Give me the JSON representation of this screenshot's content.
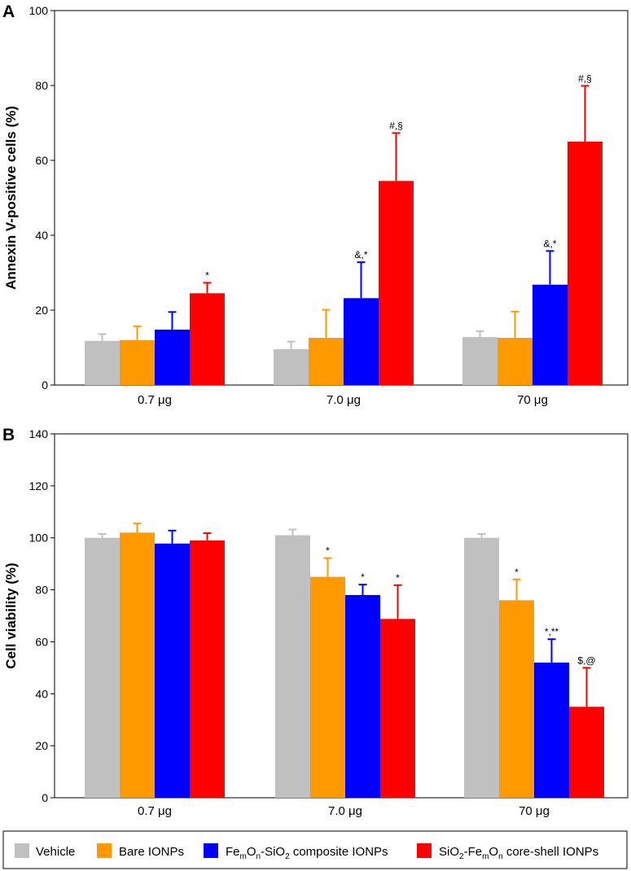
{
  "chart_data": [
    {
      "type": "bar",
      "panel": "A",
      "ylabel": "Annexin V-positive cells (%)",
      "xlabel": "",
      "ylim": [
        0,
        100
      ],
      "yticks": [
        0,
        20,
        40,
        60,
        80,
        100
      ],
      "categories": [
        "0.7 μg",
        "7.0 μg",
        "70 μg"
      ],
      "series": [
        {
          "name": "Vehicle",
          "values": [
            11.8,
            9.6,
            12.8
          ],
          "errors": [
            1.8,
            2.0,
            1.6
          ],
          "annotations": [
            "",
            "",
            ""
          ]
        },
        {
          "name": "Bare IONPs",
          "values": [
            12.0,
            12.6,
            12.6
          ],
          "errors": [
            3.7,
            7.5,
            7.0
          ],
          "annotations": [
            "",
            "",
            ""
          ]
        },
        {
          "name": "FemOn-SiO2 composite IONPs",
          "values": [
            14.8,
            23.2,
            26.8
          ],
          "errors": [
            4.7,
            9.6,
            9.0
          ],
          "annotations": [
            "",
            "&,*",
            "&,*"
          ]
        },
        {
          "name": "SiO2-FemOn core-shell IONPs",
          "values": [
            24.5,
            54.5,
            65.0
          ],
          "errors": [
            2.8,
            12.8,
            14.9
          ],
          "annotations": [
            "*",
            "#,§",
            "#,§"
          ]
        }
      ]
    },
    {
      "type": "bar",
      "panel": "B",
      "ylabel": "Cell viability (%)",
      "xlabel": "",
      "ylim": [
        0,
        140
      ],
      "yticks": [
        0,
        20,
        40,
        60,
        80,
        100,
        120,
        140
      ],
      "categories": [
        "0.7 μg",
        "7.0 μg",
        "70 μg"
      ],
      "series": [
        {
          "name": "Vehicle",
          "values": [
            100.0,
            101.0,
            100.0
          ],
          "errors": [
            1.5,
            2.2,
            1.5
          ],
          "annotations": [
            "",
            "",
            ""
          ]
        },
        {
          "name": "Bare IONPs",
          "values": [
            102.0,
            85.0,
            76.0
          ],
          "errors": [
            3.5,
            7.2,
            8.0
          ],
          "annotations": [
            "",
            "*",
            "*"
          ]
        },
        {
          "name": "FemOn-SiO2 composite IONPs",
          "values": [
            97.8,
            78.0,
            52.0
          ],
          "errors": [
            5.0,
            4.0,
            9.0
          ],
          "annotations": [
            "",
            "*",
            "*,**"
          ]
        },
        {
          "name": "SiO2-FemOn core-shell IONPs",
          "values": [
            99.0,
            68.8,
            35.0
          ],
          "errors": [
            2.8,
            13.0,
            15.0
          ],
          "annotations": [
            "",
            "*",
            "$,@"
          ]
        }
      ]
    }
  ],
  "colors": {
    "vehicle": "#c0c0c0",
    "bare": "#ff9900",
    "composite": "#0000ff",
    "coreshell": "#ff0000"
  },
  "legend": {
    "vehicle": "Vehicle",
    "bare": "Bare IONPs",
    "composite": {
      "p1": "Fe",
      "s1": "m",
      "p2": "O",
      "s2": "n",
      "p3": "-SiO",
      "s3": "2",
      "p4": " composite IONPs"
    },
    "coreshell": {
      "p1": "SiO",
      "s1": "2",
      "p2": "-Fe",
      "s2": "m",
      "p3": "O",
      "s3": "n",
      "p4": " core-shell IONPs"
    }
  }
}
